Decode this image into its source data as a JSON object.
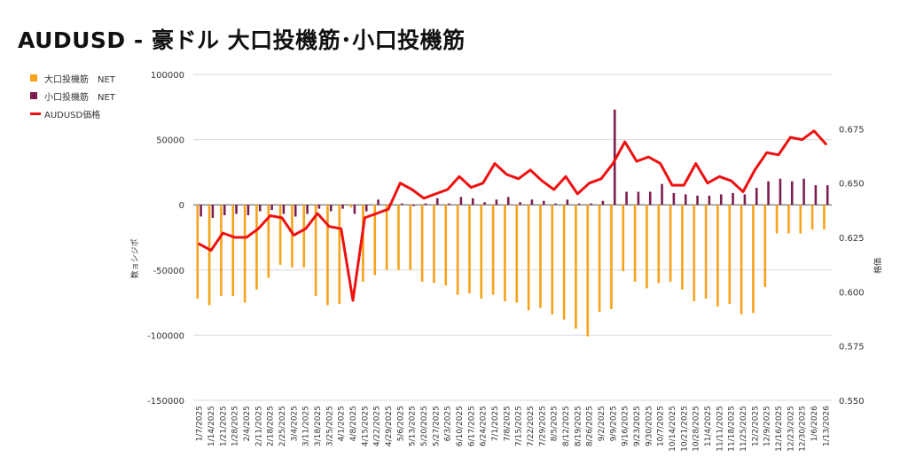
{
  "title": "AUDUSD - 豪ドル 大口投機筋･小口投機筋",
  "colors": {
    "large": "#f6a21a",
    "small": "#7b1e4f",
    "price": "#ee1111",
    "grid": "#d9d9d9",
    "text": "#333333"
  },
  "chart_data": {
    "type": "bar",
    "title": "AUDUSD - 豪ドル 大口投機筋･小口投機筋",
    "ylabel_left": "数ョシジポ",
    "ylabel_right": "格価",
    "ylim_left": [
      -150000,
      100000
    ],
    "yticks_left": [
      "100000",
      "50000",
      "0",
      "-50000",
      "-100000",
      "-150000"
    ],
    "ylim_right": [
      0.55,
      0.7
    ],
    "yticks_right": [
      "0.675",
      "0.650",
      "0.625",
      "0.600",
      "0.575",
      "0.550"
    ],
    "legend_position": "left",
    "grid": true,
    "categories": [
      "1/7/2025",
      "1/14/2025",
      "1/21/2025",
      "1/28/2025",
      "2/4/2025",
      "2/11/2025",
      "2/18/2025",
      "2/25/2025",
      "3/4/2025",
      "3/11/2025",
      "3/18/2025",
      "3/25/2025",
      "4/1/2025",
      "4/8/2025",
      "4/15/2025",
      "4/22/2025",
      "4/29/2025",
      "5/6/2025",
      "5/13/2025",
      "5/20/2025",
      "5/27/2025",
      "6/3/2025",
      "6/10/2025",
      "6/17/2025",
      "6/24/2025",
      "7/1/2025",
      "7/8/2025",
      "7/15/2025",
      "7/22/2025",
      "7/29/2025",
      "8/5/2025",
      "8/12/2025",
      "8/19/2025",
      "8/26/2025",
      "9/2/2025",
      "9/9/2025",
      "9/16/2025",
      "9/23/2025",
      "9/30/2025",
      "10/7/2025",
      "10/14/2025",
      "10/21/2025",
      "10/28/2025",
      "11/4/2025",
      "11/11/2025",
      "11/18/2025",
      "11/25/2025",
      "12/2/2025",
      "12/9/2025",
      "12/16/2025",
      "12/23/2025",
      "12/30/2025",
      "1/6/2026",
      "1/13/2026"
    ],
    "series": [
      {
        "name": "大口投機筋　NET",
        "type": "bar",
        "values": [
          -72000,
          -77000,
          -70000,
          -70000,
          -75000,
          -65000,
          -56000,
          -46000,
          -48000,
          -48000,
          -70000,
          -77000,
          -76000,
          -2000,
          -59000,
          -54000,
          -50000,
          -50000,
          -50000,
          -59000,
          -60000,
          -62000,
          -69000,
          -68000,
          -72000,
          -69000,
          -74000,
          -75000,
          -81000,
          -79000,
          -84000,
          -88000,
          -95000,
          -101000,
          -82000,
          -80000,
          -51000,
          -59000,
          -64000,
          -60000,
          -59000,
          -65000,
          -74000,
          -72000,
          -78000,
          -76000,
          -84000,
          -83000,
          -63000,
          -22000,
          -22000,
          -22000,
          -19000,
          -19000
        ]
      },
      {
        "name": "小口投機筋　NET",
        "type": "bar",
        "values": [
          -9000,
          -10000,
          -8000,
          -7000,
          -8000,
          -5000,
          -4000,
          -7000,
          -9000,
          -7000,
          -3000,
          -5000,
          -3000,
          -7000,
          -5000,
          4000,
          1000,
          1000,
          -1000,
          1000,
          5000,
          1000,
          6000,
          5000,
          2000,
          4000,
          6000,
          2000,
          4000,
          3000,
          1000,
          4000,
          1000,
          1000,
          3000,
          73000,
          10000,
          10000,
          10000,
          16000,
          9000,
          8000,
          7000,
          7000,
          8000,
          9000,
          8000,
          13000,
          18000,
          20000,
          18000,
          20000,
          15000,
          15000
        ]
      },
      {
        "name": "AUDUSD価格",
        "type": "line",
        "values": [
          0.622,
          0.619,
          0.627,
          0.625,
          0.625,
          0.629,
          0.635,
          0.634,
          0.626,
          0.629,
          0.636,
          0.63,
          0.629,
          0.596,
          0.634,
          0.636,
          0.638,
          0.65,
          0.647,
          0.643,
          0.645,
          0.647,
          0.653,
          0.648,
          0.65,
          0.659,
          0.654,
          0.652,
          0.656,
          0.651,
          0.647,
          0.653,
          0.645,
          0.65,
          0.652,
          0.659,
          0.669,
          0.66,
          0.662,
          0.659,
          0.649,
          0.649,
          0.659,
          0.65,
          0.653,
          0.651,
          0.646,
          0.656,
          0.664,
          0.663,
          0.671,
          0.67,
          0.674,
          0.668
        ]
      }
    ]
  }
}
